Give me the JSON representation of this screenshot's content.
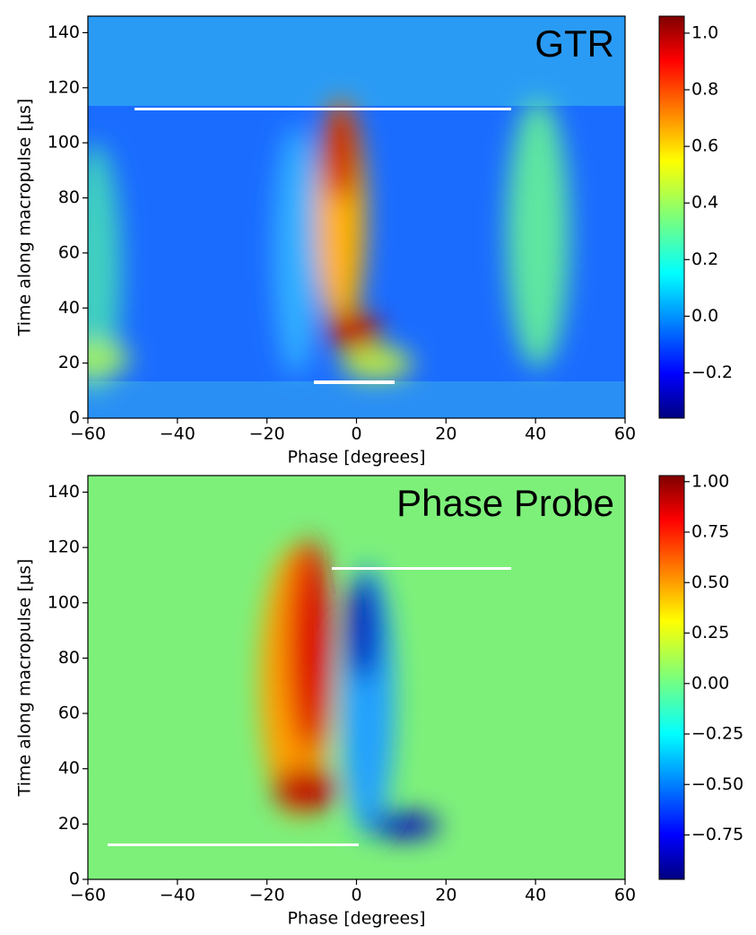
{
  "chart_data": [
    {
      "type": "heatmap",
      "annotation": "GTR",
      "xlabel": "Phase [degrees]",
      "ylabel": "Time along macropulse [$\\mu s$]",
      "xlim": [
        -60,
        60
      ],
      "ylim": [
        0,
        146
      ],
      "xticks": [
        {
          "value": -60,
          "label": "−60"
        },
        {
          "value": -40,
          "label": "−40"
        },
        {
          "value": -20,
          "label": "−20"
        },
        0,
        20,
        40,
        60
      ],
      "yticks": [
        0,
        20,
        40,
        60,
        80,
        100,
        120,
        140
      ],
      "clim": [
        -0.36,
        1.06
      ],
      "cticks": [
        {
          "value": -0.2,
          "label": "−0.2"
        },
        {
          "value": 0,
          "label": "0.0"
        },
        0.2,
        0.4,
        0.6,
        0.8,
        {
          "value": 1,
          "label": "1.0"
        }
      ]
    },
    {
      "type": "heatmap",
      "annotation": "Phase Probe",
      "xlabel": "Phase [degrees]",
      "ylabel": "Time along macropulse [$\\mu s$]",
      "xlim": [
        -60,
        60
      ],
      "ylim": [
        0,
        146
      ],
      "xticks": [
        {
          "value": -60,
          "label": "−60"
        },
        {
          "value": -40,
          "label": "−40"
        },
        {
          "value": -20,
          "label": "−20"
        },
        0,
        20,
        40,
        60
      ],
      "yticks": [
        0,
        20,
        40,
        60,
        80,
        100,
        120,
        140
      ],
      "clim": [
        -0.97,
        1.03
      ],
      "cticks": [
        {
          "value": -0.75,
          "label": "−0.75"
        },
        {
          "value": -0.5,
          "label": "−0.50"
        },
        {
          "value": -0.25,
          "label": "−0.25"
        },
        {
          "value": 0,
          "label": "0.00"
        },
        {
          "value": 0.25,
          "label": "0.25"
        },
        {
          "value": 0.5,
          "label": "0.50"
        },
        {
          "value": 0.75,
          "label": "0.75"
        },
        {
          "value": 1,
          "label": "1.00"
        }
      ]
    }
  ]
}
